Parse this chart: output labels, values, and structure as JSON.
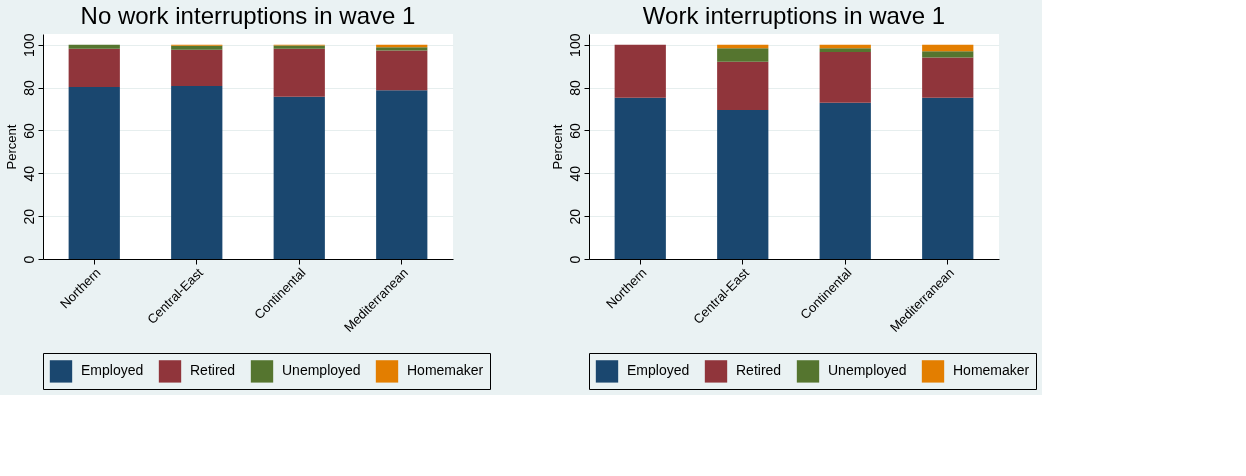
{
  "chart_data": [
    {
      "type": "bar",
      "stacked": true,
      "title": "No work interruptions in wave 1",
      "ylabel": "Percent",
      "categories": [
        "Northern",
        "Central-East",
        "Continental",
        "Mediterranean"
      ],
      "ylim": [
        0,
        105
      ],
      "yticks": [
        0,
        20,
        40,
        60,
        80,
        100
      ],
      "grid": "y",
      "legend": "bottom",
      "series": [
        {
          "name": "Employed",
          "color": "#1a476f",
          "values": [
            80.3,
            80.7,
            75.7,
            78.8
          ]
        },
        {
          "name": "Retired",
          "color": "#90353b",
          "values": [
            17.8,
            17.0,
            22.4,
            18.5
          ]
        },
        {
          "name": "Unemployed",
          "color": "#55752f",
          "values": [
            1.9,
            1.8,
            1.5,
            1.5
          ]
        },
        {
          "name": "Homemaker",
          "color": "#e37e00",
          "values": [
            0,
            0.5,
            0.4,
            1.2
          ]
        }
      ]
    },
    {
      "type": "bar",
      "stacked": true,
      "title": "Work interruptions in wave 1",
      "ylabel": "Percent",
      "categories": [
        "Northern",
        "Central-East",
        "Continental",
        "Mediterranean"
      ],
      "ylim": [
        0,
        105
      ],
      "yticks": [
        0,
        20,
        40,
        60,
        80,
        100
      ],
      "grid": "y",
      "legend": "bottom",
      "series": [
        {
          "name": "Employed",
          "color": "#1a476f",
          "values": [
            75.3,
            69.5,
            72.9,
            75.3
          ]
        },
        {
          "name": "Retired",
          "color": "#90353b",
          "values": [
            24.7,
            22.6,
            23.7,
            18.7
          ]
        },
        {
          "name": "Unemployed",
          "color": "#55752f",
          "values": [
            0,
            6.3,
            1.8,
            3.0
          ]
        },
        {
          "name": "Homemaker",
          "color": "#e37e00",
          "values": [
            0,
            1.6,
            1.6,
            3.0
          ]
        }
      ]
    }
  ]
}
